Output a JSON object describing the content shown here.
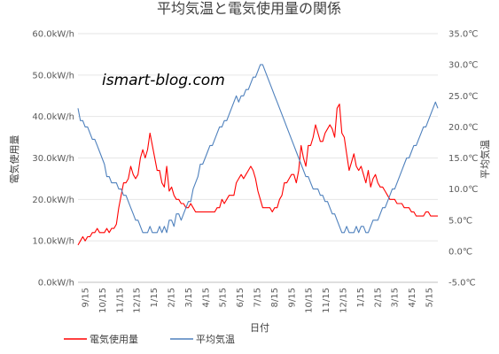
{
  "chart_data": {
    "type": "line",
    "title": "平均気温と電気使用量の関係",
    "watermark": "ismart-blog.com",
    "xlabel": "日付",
    "ylabel_left": "電気使用量",
    "ylabel_right": "平均気温",
    "left_axis": {
      "min": 0,
      "max": 60,
      "step": 10,
      "ticks": [
        "0.0kW/h",
        "10.0kW/h",
        "20.0kW/h",
        "30.0kW/h",
        "40.0kW/h",
        "50.0kW/h",
        "60.0kW/h"
      ]
    },
    "right_axis": {
      "min": -5,
      "max": 35,
      "step": 5,
      "ticks": [
        "-5.0℃",
        "0.0℃",
        "5.0℃",
        "10.0℃",
        "15.0℃",
        "20.0℃",
        "25.0℃",
        "30.0℃",
        "35.0℃"
      ]
    },
    "x_ticks": [
      "9/15",
      "10/15",
      "11/15",
      "12/15",
      "1/15",
      "2/15",
      "3/15",
      "4/15",
      "5/15",
      "6/15",
      "7/15",
      "8/15",
      "9/15",
      "10/15",
      "11/15",
      "12/15",
      "1/15",
      "2/15",
      "3/15",
      "4/15",
      "5/15"
    ],
    "grid": "horizontal",
    "legend_position": "bottom",
    "series": [
      {
        "name": "電気使用量",
        "axis": "left",
        "color": "#ff0000",
        "values": [
          9,
          10,
          11,
          10,
          11,
          11,
          12,
          12,
          13,
          12,
          12,
          12,
          13,
          12,
          13,
          13,
          14,
          18,
          21,
          24,
          24,
          25,
          28,
          26,
          25,
          26,
          30,
          32,
          30,
          32,
          36,
          33,
          30,
          27,
          27,
          24,
          23,
          28,
          22,
          23,
          21,
          20,
          20,
          19,
          19,
          18,
          18,
          19,
          18,
          17,
          17,
          17,
          17,
          17,
          17,
          17,
          17,
          17,
          18,
          18,
          20,
          19,
          20,
          21,
          21,
          21,
          24,
          25,
          26,
          25,
          26,
          27,
          28,
          27,
          25,
          22,
          20,
          18,
          18,
          18,
          18,
          17,
          18,
          18,
          20,
          21,
          24,
          24,
          25,
          26,
          26,
          24,
          27,
          33,
          30,
          28,
          33,
          33,
          35,
          38,
          36,
          34,
          34,
          36,
          37,
          38,
          37,
          35,
          42,
          43,
          36,
          35,
          31,
          27,
          29,
          31,
          28,
          27,
          28,
          26,
          24,
          27,
          23,
          25,
          26,
          24,
          23,
          23,
          22,
          21,
          20,
          20,
          20,
          19,
          19,
          19,
          18,
          18,
          18,
          17,
          17,
          16,
          16,
          16,
          16,
          17,
          17,
          16,
          16,
          16,
          16
        ]
      },
      {
        "name": "平均気温",
        "axis": "right",
        "color": "#4f81bd",
        "values": [
          23,
          21,
          21,
          20,
          20,
          19,
          18,
          18,
          17,
          16,
          15,
          14,
          12,
          12,
          11,
          11,
          11,
          10,
          10,
          9,
          9,
          8,
          7,
          6,
          5,
          5,
          4,
          3,
          3,
          3,
          4,
          3,
          3,
          3,
          4,
          3,
          4,
          3,
          5,
          5,
          4,
          6,
          6,
          5,
          6,
          7,
          8,
          8,
          10,
          11,
          12,
          14,
          14,
          15,
          16,
          17,
          17,
          18,
          19,
          20,
          20,
          21,
          21,
          22,
          23,
          24,
          25,
          24,
          25,
          25,
          26,
          26,
          27,
          28,
          28,
          29,
          30,
          30,
          29,
          28,
          27,
          26,
          25,
          24,
          23,
          22,
          21,
          20,
          19,
          18,
          17,
          16,
          15,
          14,
          13,
          12,
          12,
          11,
          10,
          10,
          10,
          9,
          9,
          8,
          8,
          7,
          6,
          6,
          5,
          4,
          3,
          3,
          4,
          3,
          3,
          3,
          4,
          3,
          4,
          4,
          3,
          3,
          4,
          5,
          5,
          5,
          6,
          7,
          7,
          8,
          9,
          10,
          10,
          11,
          12,
          13,
          14,
          15,
          15,
          16,
          17,
          17,
          18,
          19,
          20,
          20,
          21,
          22,
          23,
          24,
          23
        ]
      }
    ]
  }
}
